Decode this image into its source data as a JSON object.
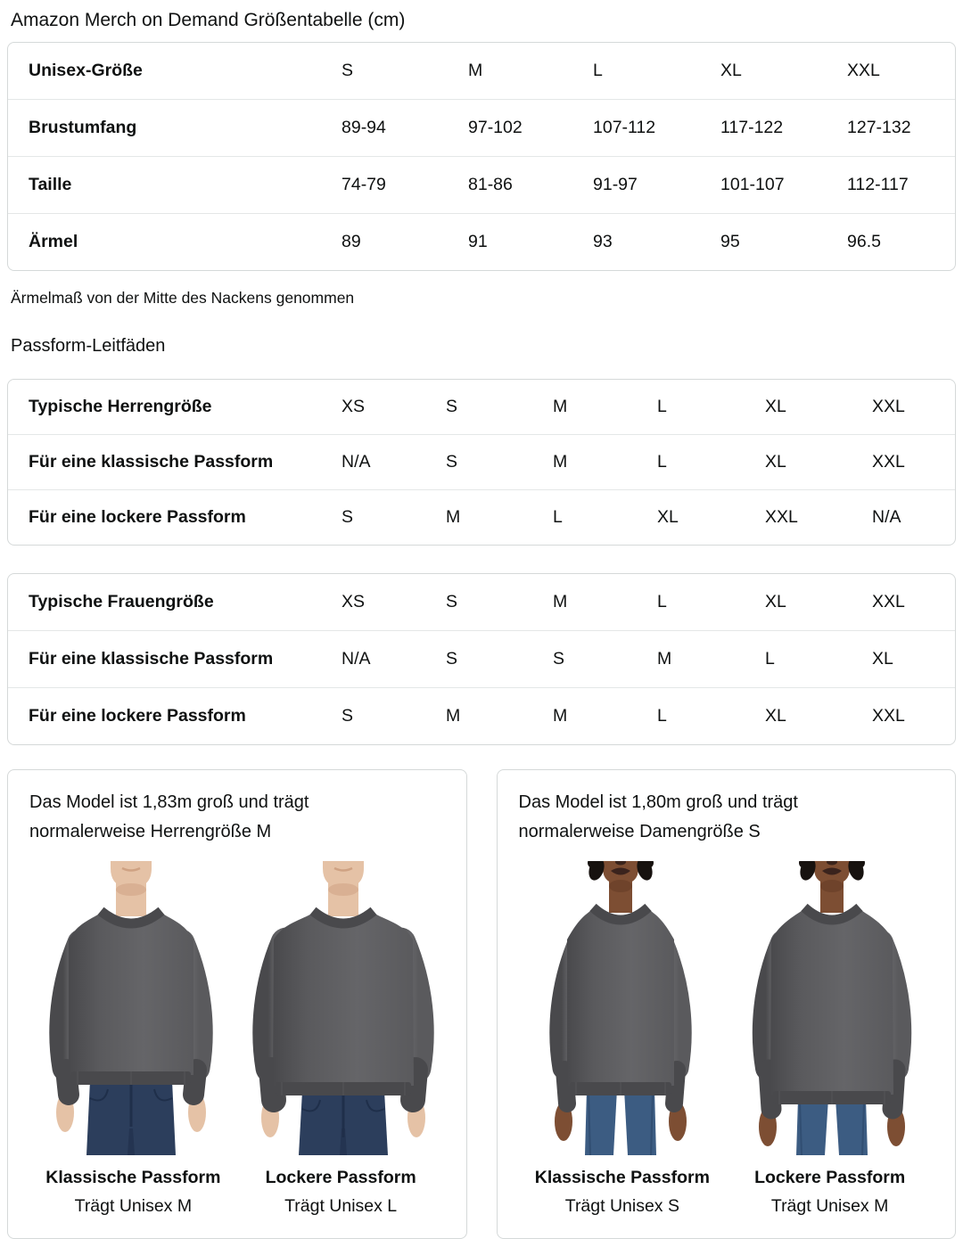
{
  "page": {
    "title": "Amazon Merch on Demand Größentabelle (cm)",
    "note": "Ärmelmaß von der Mitte des Nackens genommen",
    "fit_guides_heading": "Passform-Leitfäden"
  },
  "size_table": {
    "rows": [
      {
        "label": "Unisex-Größe",
        "values": [
          "S",
          "M",
          "L",
          "XL",
          "XXL"
        ]
      },
      {
        "label": "Brustumfang",
        "values": [
          "89-94",
          "97-102",
          "107-112",
          "117-122",
          "127-132"
        ]
      },
      {
        "label": "Taille",
        "values": [
          "74-79",
          "81-86",
          "91-97",
          "101-107",
          "112-117"
        ]
      },
      {
        "label": "Ärmel",
        "values": [
          "89",
          "91",
          "93",
          "95",
          "96.5"
        ]
      }
    ]
  },
  "fit_tables": [
    {
      "rows": [
        {
          "label": "Typische Herrengröße",
          "values": [
            "XS",
            "S",
            "M",
            "L",
            "XL",
            "XXL"
          ]
        },
        {
          "label": "Für eine klassische Passform",
          "values": [
            "N/A",
            "S",
            "M",
            "L",
            "XL",
            "XXL"
          ]
        },
        {
          "label": "Für eine lockere Passform",
          "values": [
            "S",
            "M",
            "L",
            "XL",
            "XXL",
            "N/A"
          ]
        }
      ]
    },
    {
      "rows": [
        {
          "label": "Typische Frauengröße",
          "values": [
            "XS",
            "S",
            "M",
            "L",
            "XL",
            "XXL"
          ]
        },
        {
          "label": "Für eine klassische Passform",
          "values": [
            "N/A",
            "S",
            "S",
            "M",
            "L",
            "XL"
          ]
        },
        {
          "label": "Für eine lockere Passform",
          "values": [
            "S",
            "M",
            "M",
            "L",
            "XL",
            "XXL"
          ]
        }
      ]
    }
  ],
  "model_cards": [
    {
      "description_lines": [
        "Das Model ist 1,83m groß und trägt",
        "normalerweise Herrengröße M"
      ],
      "photos": [
        {
          "fit_label": "Klassische Passform",
          "size_label": "Trägt Unisex M",
          "model": "male",
          "fit": "classic"
        },
        {
          "fit_label": "Lockere Passform",
          "size_label": "Trägt Unisex L",
          "model": "male",
          "fit": "loose"
        }
      ]
    },
    {
      "description_lines": [
        "Das Model ist 1,80m groß und trägt",
        "normalerweise Damengröße S"
      ],
      "photos": [
        {
          "fit_label": "Klassische Passform",
          "size_label": "Trägt Unisex S",
          "model": "female",
          "fit": "classic"
        },
        {
          "fit_label": "Lockere Passform",
          "size_label": "Trägt Unisex M",
          "model": "female",
          "fit": "loose"
        }
      ]
    }
  ],
  "colors": {
    "text": "#0f1111",
    "table_border": "#d5d9d9",
    "row_separator": "#e4e7e7",
    "sweatshirt": "#5a5a5d",
    "sweatshirt_dark": "#49494c",
    "sweatshirt_light": "#656568",
    "male_skin": "#e5c2a6",
    "male_skin_shadow": "#cfa283",
    "female_skin": "#7d4e33",
    "female_skin_shadow": "#643b25",
    "hair": "#17120f",
    "jeans_male": "#2c3e5c",
    "jeans_male_dark": "#1f2f4a",
    "jeans_female": "#3c5c82",
    "jeans_female_dark": "#2c486b"
  }
}
